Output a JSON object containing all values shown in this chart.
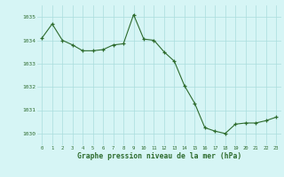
{
  "x": [
    0,
    1,
    2,
    3,
    4,
    5,
    6,
    7,
    8,
    9,
    10,
    11,
    12,
    13,
    14,
    15,
    16,
    17,
    18,
    19,
    20,
    21,
    22,
    23
  ],
  "y": [
    1034.1,
    1034.7,
    1034.0,
    1033.8,
    1033.55,
    1033.55,
    1033.6,
    1033.8,
    1033.85,
    1035.1,
    1034.05,
    1034.0,
    1033.5,
    1033.1,
    1032.05,
    1031.3,
    1030.25,
    1030.1,
    1030.0,
    1030.4,
    1030.45,
    1030.45,
    1030.55,
    1030.7
  ],
  "line_color": "#2d6b2d",
  "marker": "+",
  "marker_color": "#2d6b2d",
  "bg_color": "#d6f5f5",
  "grid_color": "#aadddd",
  "xlabel": "Graphe pression niveau de la mer (hPa)",
  "xlabel_color": "#2d6b2d",
  "tick_color": "#2d6b2d",
  "ylim": [
    1029.5,
    1035.5
  ],
  "yticks": [
    1030,
    1031,
    1032,
    1033,
    1034,
    1035
  ],
  "xticks": [
    0,
    1,
    2,
    3,
    4,
    5,
    6,
    7,
    8,
    9,
    10,
    11,
    12,
    13,
    14,
    15,
    16,
    17,
    18,
    19,
    20,
    21,
    22,
    23
  ]
}
